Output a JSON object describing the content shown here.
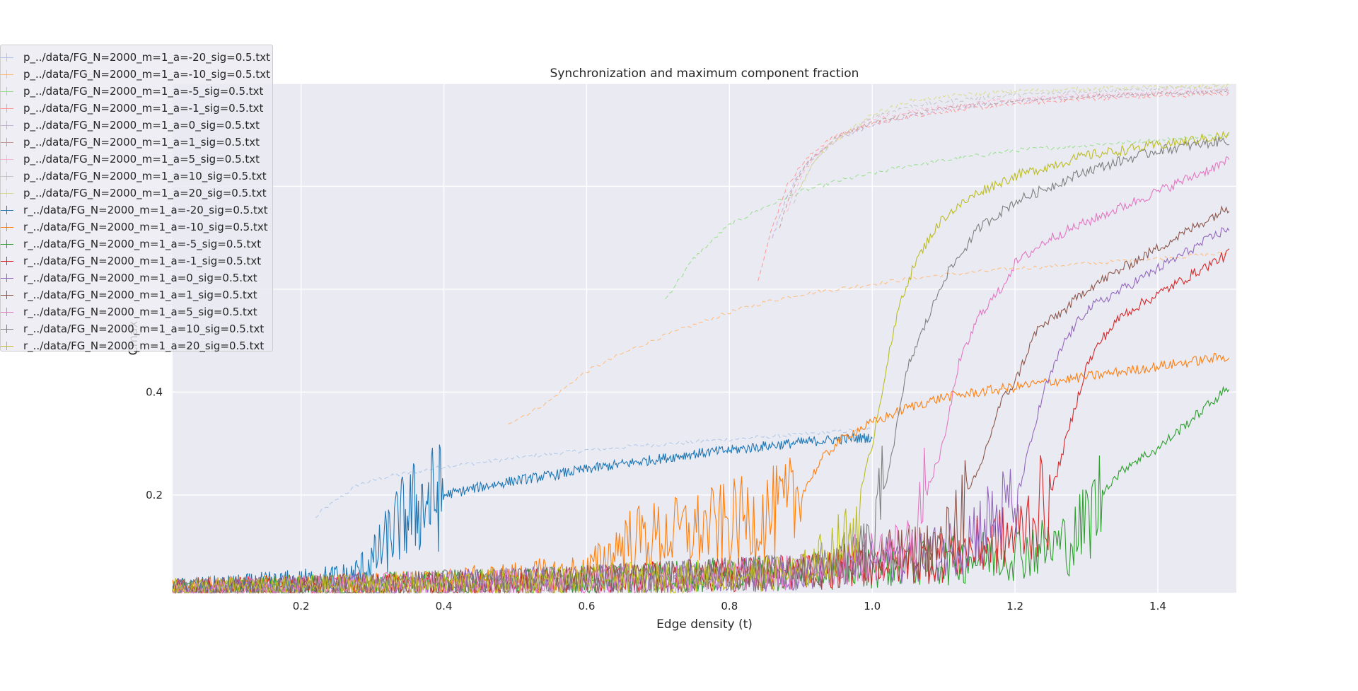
{
  "chart_data": {
    "type": "line",
    "title": "Synchronization and maximum component fraction",
    "xlabel": "Edge density ($t$)",
    "ylabel": "$C_{max}$",
    "xlim": [
      0.02,
      1.51
    ],
    "ylim": [
      0.01,
      1.0
    ],
    "x_ticks": [
      0.2,
      0.4,
      0.6,
      0.8,
      1.0,
      1.2,
      1.4
    ],
    "y_ticks": [
      0.2,
      0.4
    ],
    "x_tick_labels": [
      "0.2",
      "0.4",
      "0.6",
      "0.8",
      "1.0",
      "1.2",
      "1.4"
    ],
    "y_tick_labels": [
      "0.2",
      "0.4"
    ],
    "grid": true,
    "legend_position": "top-left",
    "series": [
      {
        "name": "p_../data/FG_N=2000_m=1_a=-20_sig=0.5.txt",
        "color": "#aec7e8",
        "style": "p",
        "x": [
          0.22,
          0.23,
          0.25,
          0.28,
          0.32,
          0.36,
          0.4,
          0.45,
          0.5,
          0.55,
          0.6,
          0.65,
          0.7,
          0.75,
          0.8,
          0.85,
          0.9,
          0.95,
          1.0
        ],
        "y": [
          0.155,
          0.17,
          0.19,
          0.22,
          0.235,
          0.245,
          0.255,
          0.263,
          0.272,
          0.28,
          0.287,
          0.293,
          0.298,
          0.303,
          0.308,
          0.313,
          0.318,
          0.323,
          0.328
        ]
      },
      {
        "name": "p_../data/FG_N=2000_m=1_a=-10_sig=0.5.txt",
        "color": "#ffbb78",
        "style": "p",
        "x": [
          0.49,
          0.52,
          0.55,
          0.58,
          0.6,
          0.65,
          0.7,
          0.75,
          0.8,
          0.85,
          0.9,
          0.95,
          1.0,
          1.05,
          1.1,
          1.2,
          1.3,
          1.4,
          1.5
        ],
        "y": [
          0.34,
          0.36,
          0.385,
          0.42,
          0.44,
          0.475,
          0.505,
          0.53,
          0.555,
          0.575,
          0.59,
          0.6,
          0.61,
          0.62,
          0.628,
          0.64,
          0.65,
          0.66,
          0.67
        ]
      },
      {
        "name": "p_../data/FG_N=2000_m=1_a=-5_sig=0.5.txt",
        "color": "#98df8a",
        "style": "p",
        "x": [
          0.71,
          0.73,
          0.75,
          0.78,
          0.8,
          0.85,
          0.9,
          0.95,
          1.0,
          1.05,
          1.1,
          1.2,
          1.3,
          1.4,
          1.5
        ],
        "y": [
          0.58,
          0.62,
          0.66,
          0.7,
          0.725,
          0.76,
          0.79,
          0.81,
          0.825,
          0.84,
          0.85,
          0.87,
          0.88,
          0.89,
          0.9
        ]
      },
      {
        "name": "p_../data/FG_N=2000_m=1_a=-1_sig=0.5.txt",
        "color": "#ff9896",
        "style": "p",
        "x": [
          0.84,
          0.86,
          0.88,
          0.9,
          0.92,
          0.95,
          1.0,
          1.05,
          1.1,
          1.2,
          1.3,
          1.4,
          1.5
        ],
        "y": [
          0.62,
          0.72,
          0.8,
          0.84,
          0.87,
          0.9,
          0.92,
          0.935,
          0.945,
          0.96,
          0.97,
          0.975,
          0.98
        ]
      },
      {
        "name": "p_../data/FG_N=2000_m=1_a=0_sig=0.5.txt",
        "color": "#c5b0d5",
        "style": "p",
        "x": [
          0.86,
          0.88,
          0.9,
          0.92,
          0.95,
          1.0,
          1.05,
          1.1,
          1.2,
          1.3,
          1.4,
          1.5
        ],
        "y": [
          0.7,
          0.78,
          0.83,
          0.86,
          0.89,
          0.92,
          0.935,
          0.95,
          0.965,
          0.975,
          0.98,
          0.985
        ]
      },
      {
        "name": "p_../data/FG_N=2000_m=1_a=1_sig=0.5.txt",
        "color": "#c49c94",
        "style": "p",
        "x": [
          0.87,
          0.89,
          0.91,
          0.93,
          0.95,
          1.0,
          1.05,
          1.1,
          1.2,
          1.3,
          1.4,
          1.5
        ],
        "y": [
          0.72,
          0.8,
          0.85,
          0.87,
          0.895,
          0.925,
          0.94,
          0.952,
          0.966,
          0.975,
          0.98,
          0.985
        ]
      },
      {
        "name": "p_../data/FG_N=2000_m=1_a=5_sig=0.5.txt",
        "color": "#f7b6d2",
        "style": "p",
        "x": [
          0.88,
          0.9,
          0.92,
          0.94,
          0.96,
          1.0,
          1.05,
          1.1,
          1.2,
          1.3,
          1.4,
          1.5
        ],
        "y": [
          0.75,
          0.82,
          0.86,
          0.88,
          0.9,
          0.93,
          0.945,
          0.955,
          0.97,
          0.978,
          0.984,
          0.988
        ]
      },
      {
        "name": "p_../data/FG_N=2000_m=1_a=10_sig=0.5.txt",
        "color": "#c7c7c7",
        "style": "p",
        "x": [
          0.89,
          0.91,
          0.93,
          0.95,
          0.97,
          1.0,
          1.05,
          1.1,
          1.2,
          1.3,
          1.4,
          1.5
        ],
        "y": [
          0.77,
          0.83,
          0.865,
          0.89,
          0.905,
          0.935,
          0.955,
          0.965,
          0.978,
          0.985,
          0.99,
          0.993
        ]
      },
      {
        "name": "p_../data/FG_N=2000_m=1_a=20_sig=0.5.txt",
        "color": "#dbdb8d",
        "style": "p",
        "x": [
          0.9,
          0.92,
          0.94,
          0.96,
          0.98,
          1.0,
          1.05,
          1.1,
          1.2,
          1.3,
          1.4,
          1.5
        ],
        "y": [
          0.8,
          0.85,
          0.88,
          0.9,
          0.92,
          0.94,
          0.965,
          0.975,
          0.985,
          0.99,
          0.993,
          0.995
        ]
      },
      {
        "name": "r_../data/FG_N=2000_m=1_a=-20_sig=0.5.txt",
        "color": "#1f77b4",
        "style": "r",
        "x": [
          0.02,
          0.1,
          0.2,
          0.27,
          0.3,
          0.32,
          0.34,
          0.36,
          0.38,
          0.4,
          0.45,
          0.5,
          0.55,
          0.6,
          0.65,
          0.7,
          0.75,
          0.8,
          0.85,
          0.9,
          0.95,
          1.0
        ],
        "y": [
          0.018,
          0.022,
          0.03,
          0.04,
          0.07,
          0.11,
          0.15,
          0.175,
          0.19,
          0.2,
          0.215,
          0.228,
          0.238,
          0.25,
          0.26,
          0.27,
          0.28,
          0.287,
          0.295,
          0.302,
          0.308,
          0.312
        ]
      },
      {
        "name": "r_../data/FG_N=2000_m=1_a=-10_sig=0.5.txt",
        "color": "#ff7f0e",
        "style": "r",
        "x": [
          0.02,
          0.2,
          0.4,
          0.6,
          0.63,
          0.65,
          0.7,
          0.75,
          0.8,
          0.85,
          0.88,
          0.9,
          0.93,
          0.95,
          0.97,
          1.0,
          1.05,
          1.1,
          1.2,
          1.3,
          1.4,
          1.5
        ],
        "y": [
          0.018,
          0.022,
          0.03,
          0.05,
          0.08,
          0.11,
          0.12,
          0.13,
          0.145,
          0.16,
          0.17,
          0.2,
          0.27,
          0.3,
          0.32,
          0.34,
          0.37,
          0.39,
          0.41,
          0.43,
          0.45,
          0.47
        ]
      },
      {
        "name": "r_../data/FG_N=2000_m=1_a=-5_sig=0.5.txt",
        "color": "#2ca02c",
        "style": "r",
        "x": [
          0.02,
          0.3,
          0.6,
          0.9,
          1.1,
          1.15,
          1.2,
          1.25,
          1.28,
          1.3,
          1.33,
          1.36,
          1.4,
          1.45,
          1.5
        ],
        "y": [
          0.018,
          0.025,
          0.035,
          0.05,
          0.07,
          0.08,
          0.09,
          0.1,
          0.11,
          0.15,
          0.22,
          0.26,
          0.29,
          0.35,
          0.41
        ]
      },
      {
        "name": "r_../data/FG_N=2000_m=1_a=-1_sig=0.5.txt",
        "color": "#d62728",
        "style": "r",
        "x": [
          0.02,
          0.3,
          0.6,
          0.9,
          1.1,
          1.2,
          1.25,
          1.27,
          1.3,
          1.32,
          1.35,
          1.4,
          1.45,
          1.5
        ],
        "y": [
          0.018,
          0.025,
          0.035,
          0.05,
          0.08,
          0.12,
          0.2,
          0.3,
          0.45,
          0.5,
          0.55,
          0.59,
          0.63,
          0.67
        ]
      },
      {
        "name": "r_../data/FG_N=2000_m=1_a=0_sig=0.5.txt",
        "color": "#9467bd",
        "style": "r",
        "x": [
          0.02,
          0.3,
          0.6,
          0.9,
          1.1,
          1.2,
          1.24,
          1.27,
          1.3,
          1.35,
          1.4,
          1.45,
          1.5
        ],
        "y": [
          0.018,
          0.025,
          0.035,
          0.05,
          0.09,
          0.18,
          0.4,
          0.5,
          0.56,
          0.6,
          0.64,
          0.68,
          0.72
        ]
      },
      {
        "name": "r_../data/FG_N=2000_m=1_a=1_sig=0.5.txt",
        "color": "#8c564b",
        "style": "r",
        "x": [
          0.02,
          0.3,
          0.6,
          0.9,
          1.1,
          1.15,
          1.18,
          1.2,
          1.23,
          1.27,
          1.3,
          1.35,
          1.4,
          1.45,
          1.5
        ],
        "y": [
          0.018,
          0.025,
          0.035,
          0.05,
          0.1,
          0.25,
          0.38,
          0.42,
          0.52,
          0.56,
          0.6,
          0.64,
          0.68,
          0.72,
          0.76
        ]
      },
      {
        "name": "r_../data/FG_N=2000_m=1_a=5_sig=0.5.txt",
        "color": "#e377c2",
        "style": "r",
        "x": [
          0.02,
          0.3,
          0.6,
          0.9,
          1.05,
          1.1,
          1.12,
          1.15,
          1.18,
          1.2,
          1.25,
          1.3,
          1.35,
          1.4,
          1.45,
          1.5
        ],
        "y": [
          0.018,
          0.025,
          0.035,
          0.05,
          0.1,
          0.3,
          0.45,
          0.55,
          0.6,
          0.65,
          0.7,
          0.73,
          0.76,
          0.79,
          0.82,
          0.85
        ]
      },
      {
        "name": "r_../data/FG_N=2000_m=1_a=10_sig=0.5.txt",
        "color": "#7f7f7f",
        "style": "r",
        "x": [
          0.02,
          0.3,
          0.6,
          0.9,
          1.0,
          1.03,
          1.05,
          1.08,
          1.1,
          1.13,
          1.15,
          1.2,
          1.25,
          1.3,
          1.35,
          1.4,
          1.45,
          1.5
        ],
        "y": [
          0.018,
          0.025,
          0.035,
          0.05,
          0.1,
          0.3,
          0.45,
          0.55,
          0.62,
          0.68,
          0.72,
          0.77,
          0.8,
          0.83,
          0.85,
          0.87,
          0.88,
          0.89
        ]
      },
      {
        "name": "r_../data/FG_N=2000_m=1_a=20_sig=0.5.txt",
        "color": "#bcbd22",
        "style": "r",
        "x": [
          0.02,
          0.3,
          0.6,
          0.9,
          0.97,
          1.0,
          1.02,
          1.04,
          1.06,
          1.08,
          1.1,
          1.15,
          1.2,
          1.25,
          1.3,
          1.35,
          1.4,
          1.45,
          1.5
        ],
        "y": [
          0.018,
          0.025,
          0.035,
          0.05,
          0.12,
          0.3,
          0.45,
          0.58,
          0.65,
          0.7,
          0.74,
          0.79,
          0.82,
          0.84,
          0.86,
          0.87,
          0.88,
          0.89,
          0.9
        ]
      }
    ]
  }
}
